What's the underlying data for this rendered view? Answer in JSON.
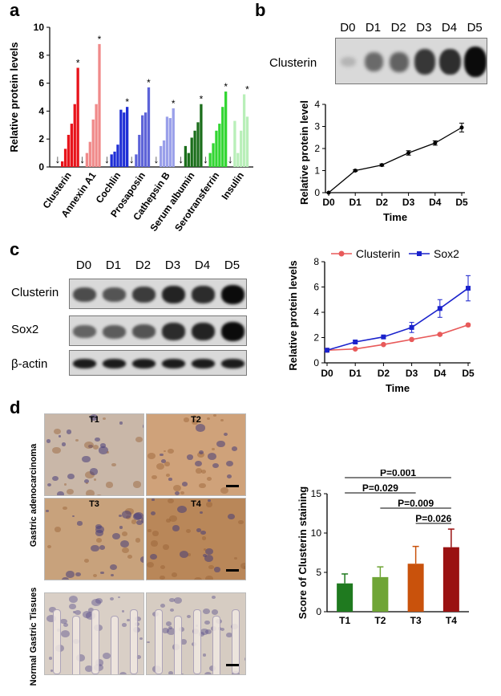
{
  "panels": {
    "a": "a",
    "b": "b",
    "c": "c",
    "d": "d"
  },
  "colors": {
    "red": "#e8141b",
    "pink": "#f08a8a",
    "blue": "#1f2fd6",
    "slate": "#5d63d8",
    "lavender": "#9aa0ea",
    "dkgreen": "#1b6e1b",
    "green": "#33d633",
    "lightgreen": "#b9efb9",
    "clusterin_line": "#e85a5a",
    "sox2_line": "#1a22cc",
    "t1": "#1f7a1f",
    "t2": "#6fa536",
    "t3": "#c9520c",
    "t4": "#9a1212"
  },
  "chart_data": [
    {
      "id": "a",
      "type": "bar",
      "ylabel": "Relative protein levels",
      "ylim": [
        0,
        10
      ],
      "yticks": [
        "0",
        "2",
        "4",
        "6",
        "8",
        "10"
      ],
      "groups": [
        {
          "label": "Clusterin",
          "values": [
            0.4,
            1.3,
            2.3,
            3.1,
            4.5,
            7.1
          ],
          "color": "#e8141b",
          "marker": "*"
        },
        {
          "label": "Annexin A1",
          "values": [
            1.0,
            1.8,
            3.4,
            4.5,
            8.8
          ],
          "color": "#f08a8a",
          "marker": "*"
        },
        {
          "label": "Cochlin",
          "values": [
            0.9,
            1.1,
            1.6,
            4.1,
            3.9,
            4.3
          ],
          "color": "#1f2fd6",
          "marker": "*"
        },
        {
          "label": "Prosaposin",
          "values": [
            0.9,
            2.3,
            3.7,
            3.9,
            5.7
          ],
          "color": "#5d63d8",
          "marker": "*"
        },
        {
          "label": "Cathepsin B",
          "values": [
            1.5,
            1.9,
            3.6,
            3.5,
            4.2
          ],
          "color": "#9aa0ea",
          "marker": "*"
        },
        {
          "label": "Serum albumin",
          "values": [
            1.5,
            1.0,
            2.1,
            2.6,
            3.2,
            4.5
          ],
          "color": "#1b6e1b",
          "marker": "*"
        },
        {
          "label": "Serotransferrin",
          "values": [
            1.0,
            1.7,
            2.6,
            3.1,
            4.3,
            5.4
          ],
          "color": "#33d633",
          "marker": "*"
        },
        {
          "label": "Insulin",
          "values": [
            3.3,
            1.0,
            2.6,
            5.2,
            3.6
          ],
          "color": "#b9efb9",
          "marker": "*"
        }
      ],
      "arrow_marker": "↓"
    },
    {
      "id": "b",
      "type": "line",
      "xlabel": "Time",
      "ylabel": "Relative protein level",
      "categories": [
        "D0",
        "D1",
        "D2",
        "D3",
        "D4",
        "D5"
      ],
      "ylim": [
        0,
        4
      ],
      "yticks": [
        "0",
        "1",
        "2",
        "3",
        "4"
      ],
      "series": [
        {
          "name": "Clusterin",
          "values": [
            0,
            1.0,
            1.25,
            1.8,
            2.25,
            2.95
          ],
          "errors": [
            0,
            0.04,
            0.05,
            0.1,
            0.1,
            0.2
          ],
          "color": "#000000"
        }
      ]
    },
    {
      "id": "c",
      "type": "line",
      "xlabel": "Time",
      "ylabel": "Relative protein levels",
      "categories": [
        "D0",
        "D1",
        "D2",
        "D3",
        "D4",
        "D5"
      ],
      "ylim": [
        0,
        8
      ],
      "yticks": [
        "0",
        "2",
        "4",
        "6",
        "8"
      ],
      "legend_position": "top",
      "series": [
        {
          "name": "Clusterin",
          "values": [
            1.0,
            1.1,
            1.45,
            1.85,
            2.25,
            3.0
          ],
          "errors": [
            0,
            0.05,
            0.05,
            0.05,
            0.08,
            0.1
          ],
          "color": "#e85a5a",
          "marker": "circle"
        },
        {
          "name": "Sox2",
          "values": [
            1.0,
            1.65,
            2.05,
            2.8,
            4.3,
            5.9
          ],
          "errors": [
            0,
            0.1,
            0.1,
            0.4,
            0.7,
            1.0
          ],
          "color": "#1a22cc",
          "marker": "square"
        }
      ]
    },
    {
      "id": "d",
      "type": "bar",
      "ylabel": "Score of Clusterin staining",
      "categories": [
        "T1",
        "T2",
        "T3",
        "T4"
      ],
      "values": [
        3.6,
        4.4,
        6.1,
        8.2
      ],
      "errors": [
        1.2,
        1.3,
        2.2,
        2.3
      ],
      "ylim": [
        0,
        15
      ],
      "yticks": [
        "0",
        "5",
        "10",
        "15"
      ],
      "significance": [
        {
          "label": "P=0.001",
          "from": "T1",
          "to": "T4"
        },
        {
          "label": "P=0.029",
          "from": "T1",
          "to": "T3"
        },
        {
          "label": "P=0.009",
          "from": "T2",
          "to": "T4"
        },
        {
          "label": "P=0.026",
          "from": "T3",
          "to": "T4"
        }
      ]
    }
  ],
  "blot_b": {
    "lanes": [
      "D0",
      "D1",
      "D2",
      "D3",
      "D4",
      "D5"
    ],
    "protein": "Clusterin",
    "intensity": [
      0.02,
      0.45,
      0.5,
      0.75,
      0.8,
      1.0
    ]
  },
  "blot_c": {
    "lanes": [
      "D0",
      "D1",
      "D2",
      "D3",
      "D4",
      "D5"
    ],
    "rows": [
      {
        "label": "Clusterin",
        "intensity": [
          0.6,
          0.55,
          0.7,
          0.85,
          0.8,
          1.0
        ]
      },
      {
        "label": "Sox2",
        "intensity": [
          0.45,
          0.5,
          0.55,
          0.8,
          0.85,
          1.0
        ]
      },
      {
        "label": "β-actin",
        "intensity": [
          0.9,
          0.9,
          0.9,
          0.9,
          0.9,
          0.9
        ]
      }
    ]
  },
  "histology": {
    "stage_labels": [
      "T1",
      "T2",
      "T3",
      "T4"
    ],
    "row_labels": [
      "Gastric adenocarcinoma",
      "Normal Gastric Tissues"
    ]
  }
}
